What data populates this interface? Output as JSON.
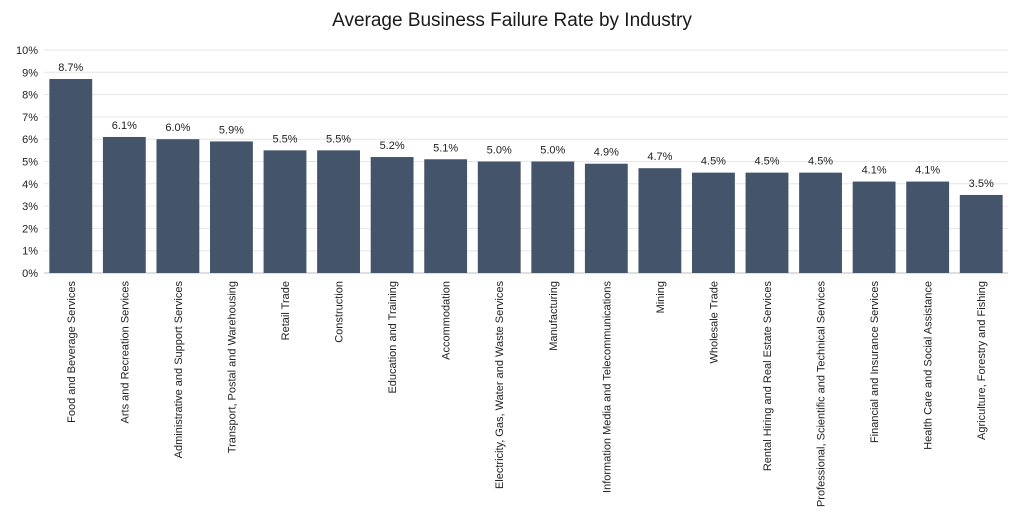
{
  "chart_data": {
    "type": "bar",
    "title": "Average Business Failure Rate by Industry",
    "xlabel": "",
    "ylabel": "",
    "ylim": [
      0,
      10
    ],
    "yticks": [
      "0%",
      "1%",
      "2%",
      "3%",
      "4%",
      "5%",
      "6%",
      "7%",
      "8%",
      "9%",
      "10%"
    ],
    "grid": true,
    "bar_color": "#44546a",
    "categories": [
      "Food and Beverage Services",
      "Arts and Recreation Services",
      "Administrative and Support Services",
      "Transport, Postal and Warehousing",
      "Retail Trade",
      "Construction",
      "Education and Training",
      "Accommodation",
      "Electricity, Gas, Water and Waste Services",
      "Manufacturing",
      "Information Media and Telecommunications",
      "Mining",
      "Wholesale Trade",
      "Rental Hiring and Real Estate Services",
      "Professional, Scientific and Technical Services",
      "Financial and Insurance Services",
      "Health Care and Social Assistance",
      "Agriculture, Forestry and Fishing"
    ],
    "values": [
      8.7,
      6.1,
      6.0,
      5.9,
      5.5,
      5.5,
      5.2,
      5.1,
      5.0,
      5.0,
      4.9,
      4.7,
      4.5,
      4.5,
      4.5,
      4.1,
      4.1,
      3.5
    ],
    "data_labels": [
      "8.7%",
      "6.1%",
      "6.0%",
      "5.9%",
      "5.5%",
      "5.5%",
      "5.2%",
      "5.1%",
      "5.0%",
      "5.0%",
      "4.9%",
      "4.7%",
      "4.5%",
      "4.5%",
      "4.5%",
      "4.1%",
      "4.1%",
      "3.5%"
    ]
  }
}
